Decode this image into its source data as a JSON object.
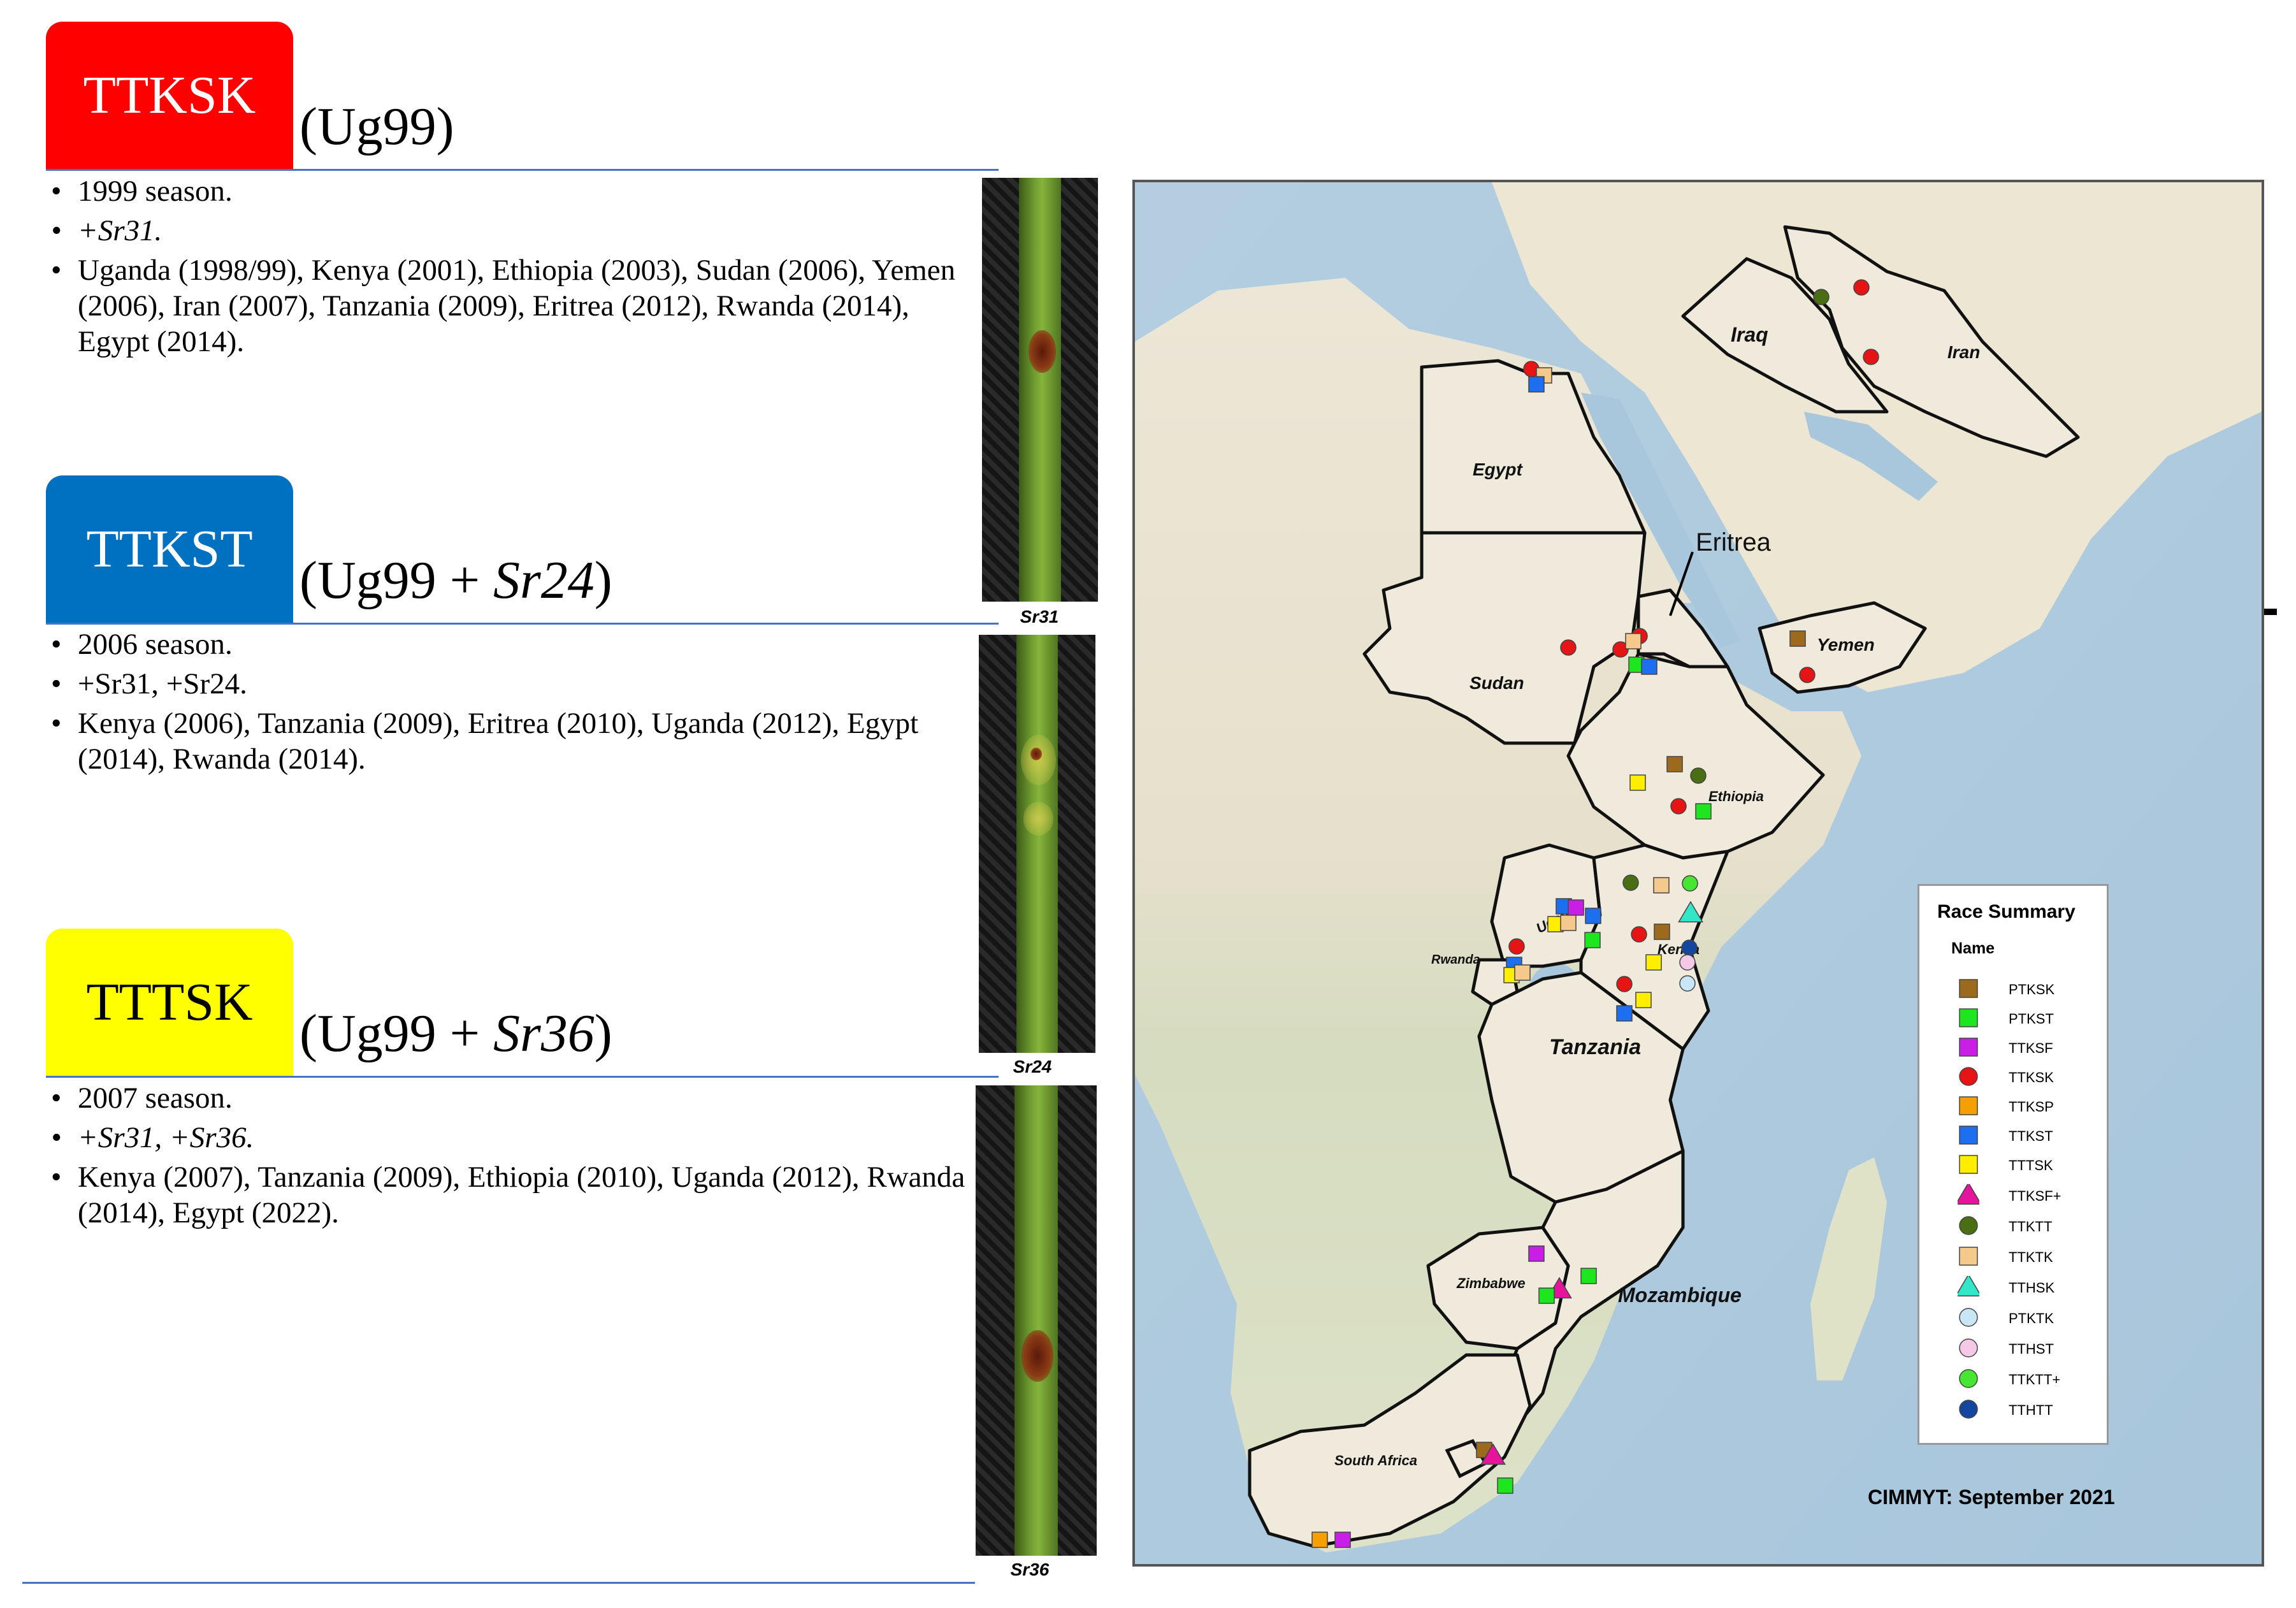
{
  "sections": [
    {
      "race": "TTKSK",
      "box_color": "#ff0000",
      "text_color": "#ffffff",
      "subtitle_prefix": "(Ug99",
      "subtitle_italic": "",
      "subtitle_suffix": ")",
      "bullets": [
        {
          "text": "1999 season.",
          "italic": false
        },
        {
          "text": "+Sr31.",
          "italic": true
        },
        {
          "text": "Uganda (1998/99), Kenya (2001), Ethiopia (2003), Sudan (2006), Yemen (2006), Iran (2007), Tanzania (2009), Eritrea (2012), Rwanda (2014), Egypt (2014).",
          "italic": false
        }
      ],
      "image_caption": "Sr31"
    },
    {
      "race": "TTKST",
      "box_color": "#0070c0",
      "text_color": "#ffffff",
      "subtitle_prefix": "(Ug99 + ",
      "subtitle_italic": "Sr24",
      "subtitle_suffix": ")",
      "bullets": [
        {
          "text": "2006 season.",
          "italic": false
        },
        {
          "text": "+Sr31, +Sr24.",
          "italic": false
        },
        {
          "text": "Kenya (2006), Tanzania (2009), Eritrea (2010), Uganda (2012), Egypt (2014), Rwanda (2014).",
          "italic": false
        }
      ],
      "image_caption": "Sr24"
    },
    {
      "race": "TTTSK",
      "box_color": "#ffff00",
      "text_color": "#000000",
      "subtitle_prefix": "(Ug99 + ",
      "subtitle_italic": "Sr36",
      "subtitle_suffix": ")",
      "bullets": [
        {
          "text": "2007 season.",
          "italic": false
        },
        {
          "text": "+Sr31, +Sr36.",
          "italic": true
        },
        {
          "text": "Kenya (2007), Tanzania (2009), Ethiopia (2010), Uganda (2012), Rwanda (2014), Egypt (2022).",
          "italic": false
        }
      ],
      "image_caption": "Sr36"
    }
  ],
  "map": {
    "country_labels": [
      {
        "name": "Iraq",
        "style": "bold-italic"
      },
      {
        "name": "Iran",
        "style": "bold-italic"
      },
      {
        "name": "Egypt",
        "style": "bold-italic"
      },
      {
        "name": "Eritrea",
        "style": "plain"
      },
      {
        "name": "Yemen",
        "style": "bold-italic"
      },
      {
        "name": "Sudan",
        "style": "bold-italic"
      },
      {
        "name": "Ethiopia",
        "style": "bold-italic"
      },
      {
        "name": "Uganda",
        "style": "bold-italic"
      },
      {
        "name": "Kenya",
        "style": "bold-italic"
      },
      {
        "name": "Rwanda",
        "style": "bold-italic"
      },
      {
        "name": "Tanzania",
        "style": "bold-italic"
      },
      {
        "name": "Zimbabwe",
        "style": "bold-italic"
      },
      {
        "name": "Mozambique",
        "style": "bold-italic"
      },
      {
        "name": "South Africa",
        "style": "bold-italic"
      }
    ],
    "legend_title": "Race Summary",
    "legend_name_header": "Name",
    "legend": [
      {
        "name": "PTKSK",
        "shape": "square",
        "color": "#9c6a1c"
      },
      {
        "name": "PTKST",
        "shape": "square",
        "color": "#1ee61e"
      },
      {
        "name": "TTKSF",
        "shape": "square",
        "color": "#c81ee6"
      },
      {
        "name": "TTKSK",
        "shape": "circle",
        "color": "#e61414"
      },
      {
        "name": "TTKSP",
        "shape": "square",
        "color": "#f5a000"
      },
      {
        "name": "TTKST",
        "shape": "square",
        "color": "#1e6ef0"
      },
      {
        "name": "TTTSK",
        "shape": "square",
        "color": "#ffee00"
      },
      {
        "name": "TTKSF+",
        "shape": "triangle",
        "color": "#e6149c"
      },
      {
        "name": "TTKTT",
        "shape": "circle",
        "color": "#4a6e14"
      },
      {
        "name": "TTKTK",
        "shape": "square",
        "color": "#f5c88c"
      },
      {
        "name": "TTHSK",
        "shape": "triangle",
        "color": "#32e6c8"
      },
      {
        "name": "PTKTK",
        "shape": "circle",
        "color": "#c8e6f5"
      },
      {
        "name": "TTHST",
        "shape": "circle",
        "color": "#f5c8e6"
      },
      {
        "name": "TTKTT+",
        "shape": "circle",
        "color": "#46e632"
      },
      {
        "name": "TTHTT",
        "shape": "circle",
        "color": "#1446a0"
      }
    ],
    "credit": "CIMMYT: September 2021",
    "markers": [
      {
        "race": "TTKSK",
        "country": "Iran"
      },
      {
        "race": "TTKSK",
        "country": "Iran"
      },
      {
        "race": "TTKTT",
        "country": "Iran"
      },
      {
        "race": "TTKSK",
        "country": "Egypt"
      },
      {
        "race": "TTKTK",
        "country": "Egypt"
      },
      {
        "race": "TTKST",
        "country": "Egypt"
      },
      {
        "race": "TTKSK",
        "country": "Sudan"
      },
      {
        "race": "TTKSK",
        "country": "Eritrea"
      },
      {
        "race": "TTKSK",
        "country": "Eritrea"
      },
      {
        "race": "TTKTK",
        "country": "Eritrea"
      },
      {
        "race": "PTKST",
        "country": "Eritrea"
      },
      {
        "race": "TTKST",
        "country": "Eritrea"
      },
      {
        "race": "PTKSK",
        "country": "Yemen"
      },
      {
        "race": "TTKSK",
        "country": "Yemen"
      },
      {
        "race": "PTKSK",
        "country": "Ethiopia"
      },
      {
        "race": "TTKTT",
        "country": "Ethiopia"
      },
      {
        "race": "TTTSK",
        "country": "Ethiopia"
      },
      {
        "race": "TTKSK",
        "country": "Ethiopia"
      },
      {
        "race": "PTKST",
        "country": "Ethiopia"
      },
      {
        "race": "TTKST",
        "country": "Uganda"
      },
      {
        "race": "TTKSF",
        "country": "Uganda"
      },
      {
        "race": "TTTSK",
        "country": "Uganda"
      },
      {
        "race": "TTKTK",
        "country": "Uganda"
      },
      {
        "race": "TTKST",
        "country": "Uganda"
      },
      {
        "race": "TTKTT",
        "country": "Kenya"
      },
      {
        "race": "TTKTK",
        "country": "Kenya"
      },
      {
        "race": "TTKTT+",
        "country": "Kenya"
      },
      {
        "race": "TTKSK",
        "country": "Kenya"
      },
      {
        "race": "PTKSK",
        "country": "Kenya"
      },
      {
        "race": "TTHSK",
        "country": "Kenya"
      },
      {
        "race": "PTKST",
        "country": "Kenya"
      },
      {
        "race": "TTHTT",
        "country": "Kenya"
      },
      {
        "race": "TTHST",
        "country": "Kenya"
      },
      {
        "race": "PTKTK",
        "country": "Kenya"
      },
      {
        "race": "TTTSK",
        "country": "Kenya"
      },
      {
        "race": "TTKSK",
        "country": "Rwanda"
      },
      {
        "race": "TTKST",
        "country": "Rwanda"
      },
      {
        "race": "TTTSK",
        "country": "Rwanda"
      },
      {
        "race": "TTKTK",
        "country": "Rwanda"
      },
      {
        "race": "TTKSK",
        "country": "Tanzania"
      },
      {
        "race": "TTTSK",
        "country": "Tanzania"
      },
      {
        "race": "TTKST",
        "country": "Tanzania"
      },
      {
        "race": "TTKSF",
        "country": "Zimbabwe"
      },
      {
        "race": "PTKST",
        "country": "Zimbabwe"
      },
      {
        "race": "TTKSF+",
        "country": "Zimbabwe"
      },
      {
        "race": "PTKST",
        "country": "Zimbabwe"
      },
      {
        "race": "PTKSK",
        "country": "South Africa"
      },
      {
        "race": "TTKSF+",
        "country": "South Africa"
      },
      {
        "race": "PTKST",
        "country": "South Africa"
      },
      {
        "race": "TTKSP",
        "country": "South Africa"
      },
      {
        "race": "TTKSF",
        "country": "South Africa"
      }
    ]
  }
}
